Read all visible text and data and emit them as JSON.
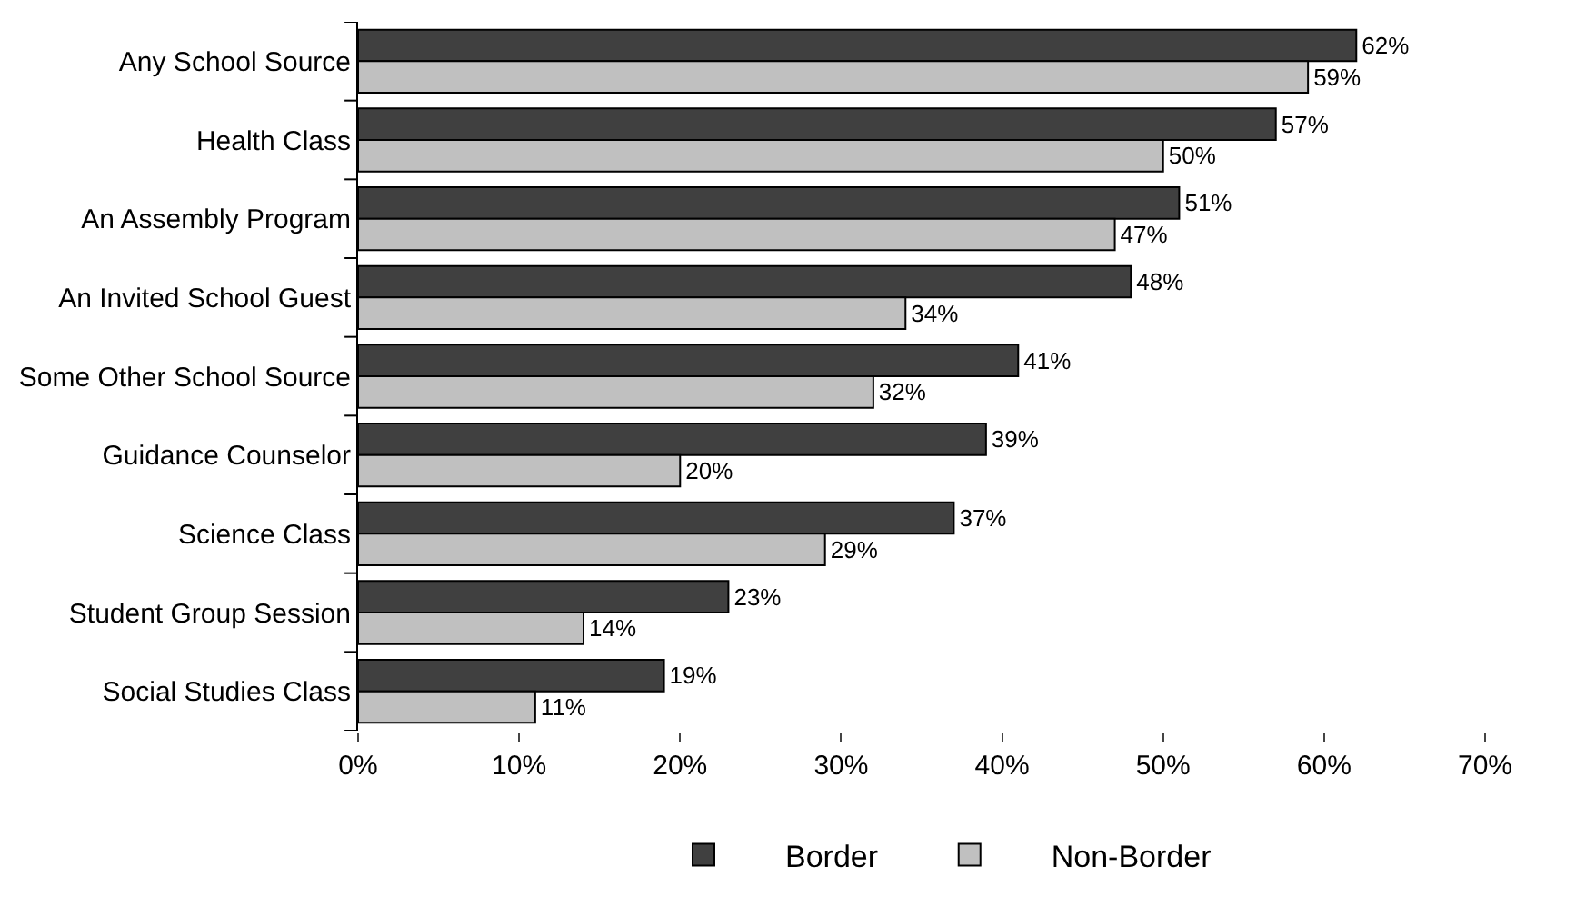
{
  "chart_data": {
    "type": "bar",
    "orientation": "horizontal",
    "categories": [
      "Any School Source",
      "Health Class",
      "An Assembly Program",
      "An Invited School Guest",
      "Some Other School Source",
      "Guidance Counselor",
      "Science Class",
      "Student Group Session",
      "Social Studies Class"
    ],
    "series": [
      {
        "name": "Border",
        "color": "#404040",
        "values": [
          62,
          57,
          51,
          48,
          41,
          39,
          37,
          23,
          19
        ],
        "value_labels": [
          "62%",
          "57%",
          "51%",
          "48%",
          "41%",
          "39%",
          "37%",
          "23%",
          "19%"
        ]
      },
      {
        "name": "Non-Border",
        "color": "#c0c0c0",
        "values": [
          59,
          50,
          47,
          34,
          32,
          20,
          29,
          14,
          11
        ],
        "value_labels": [
          "59%",
          "50%",
          "47%",
          "34%",
          "32%",
          "20%",
          "29%",
          "14%",
          "11%"
        ]
      }
    ],
    "xlim": [
      0,
      70
    ],
    "xticks": [
      {
        "value": 0,
        "label": "0%"
      },
      {
        "value": 10,
        "label": "10%"
      },
      {
        "value": 20,
        "label": "20%"
      },
      {
        "value": 30,
        "label": "30%"
      },
      {
        "value": 40,
        "label": "40%"
      },
      {
        "value": 50,
        "label": "50%"
      },
      {
        "value": 60,
        "label": "60%"
      },
      {
        "value": 70,
        "label": "70%"
      }
    ],
    "grid": false,
    "legend": "bottom"
  }
}
